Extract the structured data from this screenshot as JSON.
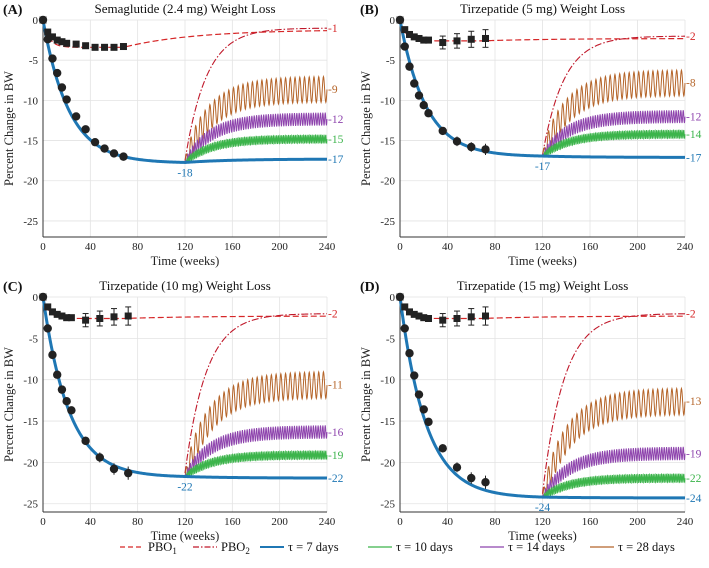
{
  "colors": {
    "pbo1": "#d62728",
    "pbo2": "#c0182a",
    "tau7": "#1f77b4",
    "tau10": "#3cb44b",
    "tau14": "#8e44ad",
    "tau28": "#b5652a",
    "marker": "#222222",
    "grid": "#e3e3e3"
  },
  "chart_data": [
    {
      "panel_label": "(A)",
      "type": "line",
      "title": "Semaglutide (2.4 mg) Weight Loss",
      "xlabel": "Time (weeks)",
      "ylabel": "Percent Change in BW",
      "xlim": [
        0,
        240
      ],
      "ylim": [
        -27,
        0
      ],
      "xticks": [
        0,
        40,
        80,
        120,
        160,
        200,
        240
      ],
      "yticks": [
        0,
        -5,
        -10,
        -15,
        -20,
        -25
      ],
      "grid": true,
      "treatment_model": {
        "nadir": -17.8,
        "tau": 22
      },
      "pbo1_model": {
        "steady": -3.4,
        "tau": 5,
        "rebound_to": -1.2,
        "rebound_tau": 60
      },
      "pbo2_start": -17.5,
      "stop_week": 120,
      "treatment_points": {
        "x": [
          0,
          4,
          8,
          12,
          16,
          20,
          28,
          36,
          44,
          52,
          60,
          68
        ],
        "y": [
          0,
          -2.4,
          -4.8,
          -6.6,
          -8.4,
          -9.9,
          -12,
          -13.6,
          -15.2,
          -16,
          -16.6,
          -17
        ]
      },
      "treatment_errors": [
        0,
        0,
        0,
        0,
        0,
        0,
        0,
        0,
        0.3,
        0.3,
        0.3,
        0.3
      ],
      "placebo_points": {
        "x": [
          0,
          4,
          8,
          12,
          16,
          20,
          28,
          36,
          44,
          52,
          60,
          68
        ],
        "y": [
          0,
          -1.5,
          -2.1,
          -2.5,
          -2.7,
          -2.9,
          -3,
          -3.2,
          -3.4,
          -3.4,
          -3.4,
          -3.3
        ]
      },
      "placebo_errors": [
        0,
        0,
        0,
        0,
        0,
        0,
        0,
        0,
        0,
        0,
        0,
        0
      ],
      "series": [
        {
          "name": "PBO1",
          "final": -1,
          "label": "-1"
        },
        {
          "name": "τ = 7 days",
          "final": -17.3,
          "label": "-17",
          "nadir_label": "-18"
        },
        {
          "name": "τ = 10 days",
          "final": -14.8,
          "label": "-15"
        },
        {
          "name": "τ = 14 days",
          "final": -12.3,
          "label": "-12"
        },
        {
          "name": "τ = 28 days",
          "final": -8.6,
          "label": "-9"
        }
      ]
    },
    {
      "panel_label": "(B)",
      "type": "line",
      "title": "Tirzepatide (5 mg) Weight Loss",
      "xlabel": "Time (weeks)",
      "ylabel": "Percent Change in BW",
      "xlim": [
        0,
        240
      ],
      "ylim": [
        -27,
        0
      ],
      "xticks": [
        0,
        40,
        80,
        120,
        160,
        200,
        240
      ],
      "yticks": [
        0,
        -5,
        -10,
        -15,
        -20,
        -25
      ],
      "grid": true,
      "treatment_model": {
        "nadir": -17.0,
        "tau": 22
      },
      "pbo1_model": {
        "steady": -2.6,
        "tau": 5,
        "rebound_to": -2.3,
        "rebound_tau": 60
      },
      "pbo2_start": -16.8,
      "stop_week": 120,
      "treatment_points": {
        "x": [
          0,
          4,
          8,
          12,
          16,
          20,
          24,
          36,
          48,
          60,
          72
        ],
        "y": [
          0,
          -3.3,
          -5.8,
          -7.9,
          -9.4,
          -10.6,
          -11.6,
          -13.8,
          -15.1,
          -15.8,
          -16.1
        ]
      },
      "treatment_errors": [
        0,
        0,
        0,
        0,
        0,
        0,
        0,
        0.4,
        0.6,
        0.6,
        0.7
      ],
      "placebo_points": {
        "x": [
          0,
          4,
          8,
          12,
          16,
          20,
          24,
          36,
          48,
          60,
          72
        ],
        "y": [
          0,
          -1.2,
          -1.8,
          -2.1,
          -2.3,
          -2.5,
          -2.5,
          -2.8,
          -2.6,
          -2.4,
          -2.3
        ]
      },
      "placebo_errors": [
        0,
        0,
        0,
        0,
        0,
        0,
        0,
        0.8,
        0.9,
        1.0,
        1.1
      ],
      "series": [
        {
          "name": "PBO1",
          "final": -2,
          "label": "-2"
        },
        {
          "name": "τ = 7 days",
          "final": -17.1,
          "label": "-17",
          "nadir_label": "-17"
        },
        {
          "name": "τ = 10 days",
          "final": -14.2,
          "label": "-14"
        },
        {
          "name": "τ = 14 days",
          "final": -12.0,
          "label": "-12"
        },
        {
          "name": "τ = 28 days",
          "final": -7.8,
          "label": "-8"
        }
      ]
    },
    {
      "panel_label": "(C)",
      "type": "line",
      "title": "Tirzepatide (10 mg) Weight Loss",
      "xlabel": "Time (weeks)",
      "ylabel": "Percent Change in BW",
      "xlim": [
        0,
        240
      ],
      "ylim": [
        -26,
        0
      ],
      "xticks": [
        0,
        40,
        80,
        120,
        160,
        200,
        240
      ],
      "yticks": [
        0,
        -5,
        -10,
        -15,
        -20,
        -25
      ],
      "grid": true,
      "treatment_model": {
        "nadir": -21.8,
        "tau": 22
      },
      "pbo1_model": {
        "steady": -2.6,
        "tau": 5,
        "rebound_to": -2.3,
        "rebound_tau": 60
      },
      "pbo2_start": -21.3,
      "stop_week": 120,
      "treatment_points": {
        "x": [
          0,
          4,
          8,
          12,
          16,
          20,
          24,
          36,
          48,
          60,
          72
        ],
        "y": [
          0,
          -3.8,
          -7,
          -9.4,
          -11.2,
          -12.6,
          -13.7,
          -17.4,
          -19.4,
          -20.8,
          -21.3
        ]
      },
      "treatment_errors": [
        0,
        0,
        0,
        0,
        0,
        0,
        0,
        0.5,
        0.6,
        0.7,
        0.8
      ],
      "placebo_points": {
        "x": [
          0,
          4,
          8,
          12,
          16,
          20,
          24,
          36,
          48,
          60,
          72
        ],
        "y": [
          0,
          -1.2,
          -1.8,
          -2.1,
          -2.3,
          -2.5,
          -2.5,
          -2.8,
          -2.6,
          -2.4,
          -2.3
        ]
      },
      "placebo_errors": [
        0,
        0,
        0,
        0,
        0,
        0,
        0,
        0.8,
        0.9,
        1.0,
        1.1
      ],
      "series": [
        {
          "name": "PBO1",
          "final": -2,
          "label": "-2"
        },
        {
          "name": "τ = 7 days",
          "final": -21.9,
          "label": "-22",
          "nadir_label": "-22"
        },
        {
          "name": "τ = 10 days",
          "final": -19.1,
          "label": "-19"
        },
        {
          "name": "τ = 14 days",
          "final": -16.3,
          "label": "-16"
        },
        {
          "name": "τ = 28 days",
          "final": -10.6,
          "label": "-11"
        }
      ]
    },
    {
      "panel_label": "(D)",
      "type": "line",
      "title": "Tirzepatide (15 mg) Weight Loss",
      "xlabel": "Time (weeks)",
      "ylabel": "Percent Change in BW",
      "xlim": [
        0,
        240
      ],
      "ylim": [
        -26,
        0
      ],
      "xticks": [
        0,
        40,
        80,
        120,
        160,
        200,
        240
      ],
      "yticks": [
        0,
        -5,
        -10,
        -15,
        -20,
        -25
      ],
      "grid": true,
      "treatment_model": {
        "nadir": -24.3,
        "tau": 22
      },
      "pbo1_model": {
        "steady": -2.6,
        "tau": 5,
        "rebound_to": -2.3,
        "rebound_tau": 60
      },
      "pbo2_start": -23.8,
      "stop_week": 120,
      "treatment_points": {
        "x": [
          0,
          4,
          8,
          12,
          16,
          20,
          24,
          36,
          48,
          60,
          72
        ],
        "y": [
          0,
          -3.8,
          -6.8,
          -9.5,
          -11.8,
          -13.6,
          -15.1,
          -18.3,
          -20.6,
          -21.9,
          -22.4
        ]
      },
      "treatment_errors": [
        0,
        0,
        0,
        0,
        0,
        0,
        0,
        0.5,
        0.6,
        0.7,
        0.8
      ],
      "placebo_points": {
        "x": [
          0,
          4,
          8,
          12,
          16,
          20,
          24,
          36,
          48,
          60,
          72
        ],
        "y": [
          0,
          -1.2,
          -1.8,
          -2.1,
          -2.3,
          -2.5,
          -2.6,
          -2.8,
          -2.6,
          -2.4,
          -2.3
        ]
      },
      "placebo_errors": [
        0,
        0,
        0,
        0,
        0,
        0,
        0,
        0.8,
        0.9,
        1.0,
        1.1
      ],
      "series": [
        {
          "name": "PBO1",
          "final": -2,
          "label": "-2"
        },
        {
          "name": "τ = 7 days",
          "final": -24.3,
          "label": "-24",
          "nadir_label": "-24"
        },
        {
          "name": "τ = 10 days",
          "final": -21.9,
          "label": "-22"
        },
        {
          "name": "τ = 14 days",
          "final": -18.9,
          "label": "-19"
        },
        {
          "name": "τ = 28 days",
          "final": -12.6,
          "label": "-13"
        }
      ]
    }
  ],
  "legend": {
    "items": [
      {
        "key": "pbo1",
        "style": "dashed",
        "label": "PBO",
        "sub": "1"
      },
      {
        "key": "pbo2",
        "style": "dashdot",
        "label": "PBO",
        "sub": "2"
      },
      {
        "key": "tau7",
        "style": "solid",
        "label": "τ = 7 days",
        "sub": ""
      },
      {
        "key": "tau10",
        "style": "solid",
        "label": "τ = 10 days",
        "sub": ""
      },
      {
        "key": "tau14",
        "style": "solid",
        "label": "τ = 14 days",
        "sub": ""
      },
      {
        "key": "tau28",
        "style": "solid",
        "label": "τ = 28 days",
        "sub": ""
      }
    ]
  }
}
